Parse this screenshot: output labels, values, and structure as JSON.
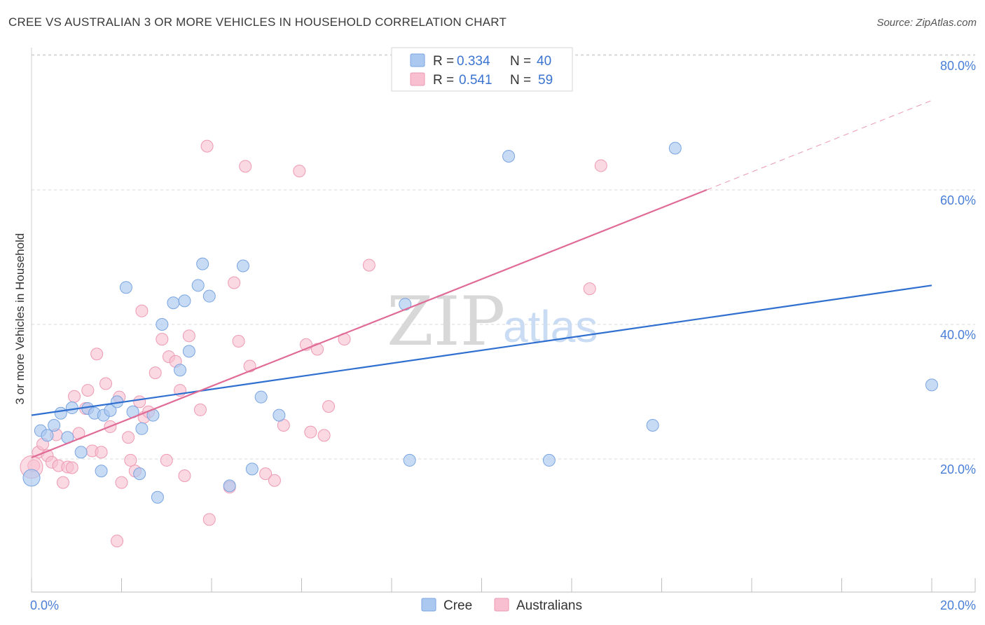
{
  "header": {
    "title": "CREE VS AUSTRALIAN 3 OR MORE VEHICLES IN HOUSEHOLD CORRELATION CHART",
    "source": "Source: ZipAtlas.com"
  },
  "watermark": {
    "zip": "ZIP",
    "atlas": "atlas"
  },
  "legend": {
    "rows": [
      {
        "r_label": "R =",
        "r_value": "0.334",
        "n_label": "N =",
        "n_value": "40"
      },
      {
        "r_label": "R =",
        "r_value": "0.541",
        "n_label": "N =",
        "n_value": "59"
      }
    ]
  },
  "bottom_legend": {
    "cree": "Cree",
    "australians": "Australians"
  },
  "colors": {
    "cree_fill": "#aac8f0",
    "cree_stroke": "#7aa5e0",
    "cree_line": "#2f6fd0",
    "aus_fill": "#f7bfd0",
    "aus_stroke": "#ee9ab3",
    "aus_line": "#e06b96",
    "tick_color": "#4a7fd6"
  },
  "chart_data": {
    "type": "scatter",
    "title": "CREE VS AUSTRALIAN 3 OR MORE VEHICLES IN HOUSEHOLD CORRELATION CHART",
    "xlabel": "",
    "ylabel": "3 or more Vehicles in Household",
    "xlim": [
      0,
      20
    ],
    "ylim": [
      0,
      85
    ],
    "x_ticks": [
      "0.0%",
      "20.0%"
    ],
    "y_ticks": [
      "20.0%",
      "40.0%",
      "60.0%",
      "80.0%"
    ],
    "y_tick_values": [
      20,
      40,
      60,
      80
    ],
    "grid": true,
    "legend_position": "top-center",
    "series": [
      {
        "name": "Cree",
        "r": 0.334,
        "n": 40,
        "trend": {
          "x": [
            0,
            20
          ],
          "y": [
            26.5,
            45.8
          ]
        },
        "points": [
          {
            "x": 0.0,
            "y": 17.2
          },
          {
            "x": 0.2,
            "y": 24.2
          },
          {
            "x": 0.35,
            "y": 23.5
          },
          {
            "x": 0.5,
            "y": 25.0
          },
          {
            "x": 0.65,
            "y": 26.8
          },
          {
            "x": 0.8,
            "y": 23.2
          },
          {
            "x": 0.9,
            "y": 27.6
          },
          {
            "x": 1.1,
            "y": 21.0
          },
          {
            "x": 1.25,
            "y": 27.5
          },
          {
            "x": 1.4,
            "y": 26.8
          },
          {
            "x": 1.55,
            "y": 18.2
          },
          {
            "x": 1.6,
            "y": 26.5
          },
          {
            "x": 1.75,
            "y": 27.2
          },
          {
            "x": 2.1,
            "y": 45.5
          },
          {
            "x": 1.9,
            "y": 28.5
          },
          {
            "x": 2.25,
            "y": 27.0
          },
          {
            "x": 2.4,
            "y": 17.8
          },
          {
            "x": 2.45,
            "y": 24.5
          },
          {
            "x": 2.7,
            "y": 26.5
          },
          {
            "x": 2.8,
            "y": 14.3
          },
          {
            "x": 2.9,
            "y": 40.0
          },
          {
            "x": 3.15,
            "y": 43.2
          },
          {
            "x": 3.4,
            "y": 43.5
          },
          {
            "x": 3.3,
            "y": 33.2
          },
          {
            "x": 3.5,
            "y": 36.0
          },
          {
            "x": 3.7,
            "y": 45.8
          },
          {
            "x": 3.8,
            "y": 49.0
          },
          {
            "x": 3.95,
            "y": 44.2
          },
          {
            "x": 4.4,
            "y": 16.0
          },
          {
            "x": 4.7,
            "y": 48.7
          },
          {
            "x": 4.9,
            "y": 18.5
          },
          {
            "x": 5.1,
            "y": 29.2
          },
          {
            "x": 5.5,
            "y": 26.5
          },
          {
            "x": 8.3,
            "y": 43.0
          },
          {
            "x": 8.4,
            "y": 19.8
          },
          {
            "x": 10.6,
            "y": 65.0
          },
          {
            "x": 11.5,
            "y": 19.8
          },
          {
            "x": 13.8,
            "y": 25.0
          },
          {
            "x": 14.3,
            "y": 66.2
          },
          {
            "x": 20.0,
            "y": 31.0
          }
        ]
      },
      {
        "name": "Australians",
        "r": 0.541,
        "n": 59,
        "trend": {
          "x": [
            0,
            15
          ],
          "y": [
            20.2,
            60.0
          ]
        },
        "trend_extension": {
          "x": [
            15,
            20
          ],
          "y": [
            60.0,
            73.3
          ]
        },
        "points": [
          {
            "x": 0.05,
            "y": 19.0
          },
          {
            "x": 0.15,
            "y": 21.0
          },
          {
            "x": 0.25,
            "y": 22.2
          },
          {
            "x": 0.35,
            "y": 20.5
          },
          {
            "x": 0.45,
            "y": 19.5
          },
          {
            "x": 0.55,
            "y": 23.6
          },
          {
            "x": 0.6,
            "y": 19.0
          },
          {
            "x": 0.7,
            "y": 16.5
          },
          {
            "x": 0.8,
            "y": 18.8
          },
          {
            "x": 0.9,
            "y": 18.7
          },
          {
            "x": 0.95,
            "y": 29.3
          },
          {
            "x": 1.05,
            "y": 23.8
          },
          {
            "x": 1.2,
            "y": 27.5
          },
          {
            "x": 1.25,
            "y": 30.2
          },
          {
            "x": 1.35,
            "y": 21.2
          },
          {
            "x": 1.45,
            "y": 35.6
          },
          {
            "x": 1.55,
            "y": 21.0
          },
          {
            "x": 1.65,
            "y": 31.2
          },
          {
            "x": 1.75,
            "y": 24.8
          },
          {
            "x": 1.9,
            "y": 7.8
          },
          {
            "x": 1.95,
            "y": 29.2
          },
          {
            "x": 2.0,
            "y": 16.5
          },
          {
            "x": 2.15,
            "y": 23.2
          },
          {
            "x": 2.2,
            "y": 19.8
          },
          {
            "x": 2.3,
            "y": 18.2
          },
          {
            "x": 2.4,
            "y": 28.5
          },
          {
            "x": 2.45,
            "y": 42.0
          },
          {
            "x": 2.5,
            "y": 26.2
          },
          {
            "x": 2.6,
            "y": 27.0
          },
          {
            "x": 2.75,
            "y": 32.8
          },
          {
            "x": 2.9,
            "y": 37.8
          },
          {
            "x": 3.0,
            "y": 19.8
          },
          {
            "x": 3.05,
            "y": 35.2
          },
          {
            "x": 3.2,
            "y": 34.5
          },
          {
            "x": 3.3,
            "y": 30.2
          },
          {
            "x": 3.4,
            "y": 17.5
          },
          {
            "x": 3.5,
            "y": 38.3
          },
          {
            "x": 3.75,
            "y": 27.3
          },
          {
            "x": 3.9,
            "y": 66.5
          },
          {
            "x": 3.95,
            "y": 11.0
          },
          {
            "x": 4.4,
            "y": 15.8
          },
          {
            "x": 4.5,
            "y": 46.2
          },
          {
            "x": 4.6,
            "y": 37.5
          },
          {
            "x": 4.75,
            "y": 63.5
          },
          {
            "x": 4.85,
            "y": 33.8
          },
          {
            "x": 5.2,
            "y": 17.8
          },
          {
            "x": 5.4,
            "y": 16.8
          },
          {
            "x": 5.6,
            "y": 25.0
          },
          {
            "x": 5.95,
            "y": 62.8
          },
          {
            "x": 6.1,
            "y": 37.0
          },
          {
            "x": 6.2,
            "y": 24.0
          },
          {
            "x": 6.35,
            "y": 36.3
          },
          {
            "x": 6.5,
            "y": 23.5
          },
          {
            "x": 6.6,
            "y": 27.8
          },
          {
            "x": 6.95,
            "y": 37.8
          },
          {
            "x": 7.5,
            "y": 48.8
          },
          {
            "x": 12.4,
            "y": 45.3
          },
          {
            "x": 12.65,
            "y": 63.6
          },
          {
            "x": 0.0,
            "y": 18.8
          }
        ]
      }
    ]
  }
}
